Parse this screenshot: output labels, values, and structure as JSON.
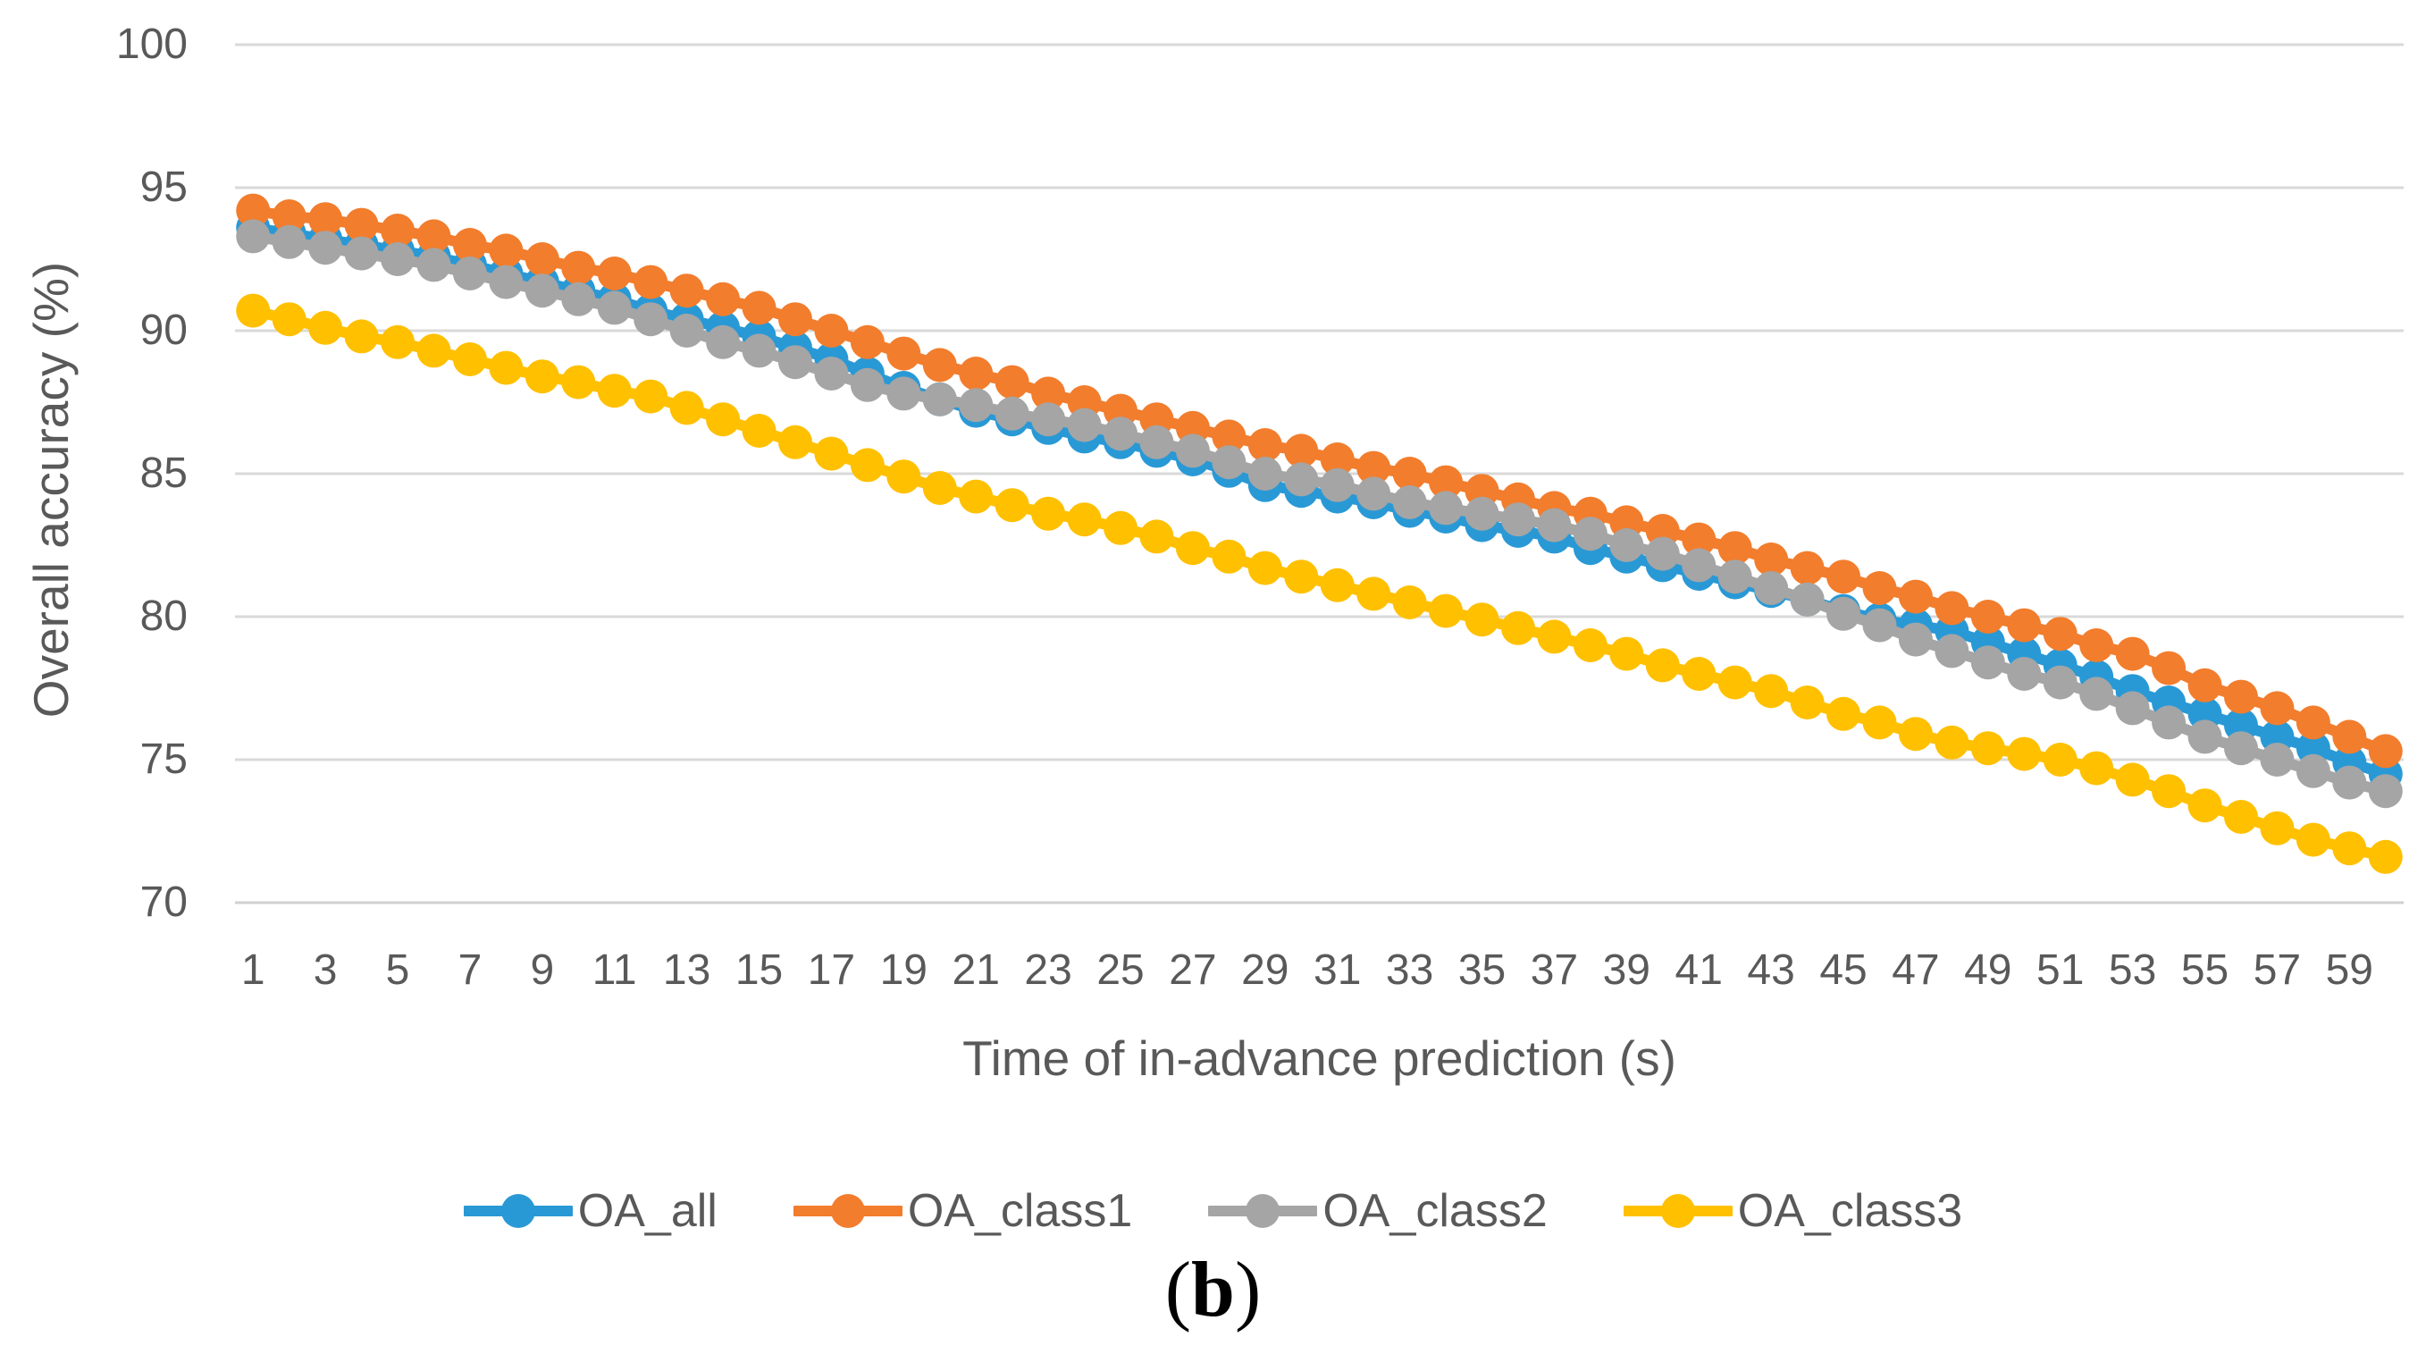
{
  "figure": {
    "caption_open": "(",
    "caption_letter": "b",
    "caption_close": ")"
  },
  "chart_data": {
    "type": "line",
    "title": "",
    "xlabel": "Time of in-advance prediction (s)",
    "ylabel": "Overall accuracy (%)",
    "ylim": [
      70,
      100
    ],
    "y_ticks": [
      70,
      75,
      80,
      85,
      90,
      95,
      100
    ],
    "y_tick_labels": [
      "70",
      "75",
      "80",
      "85",
      "90",
      "95",
      "100"
    ],
    "x_tick_labels": [
      "1",
      "3",
      "5",
      "7",
      "9",
      "11",
      "13",
      "15",
      "17",
      "19",
      "21",
      "23",
      "25",
      "27",
      "29",
      "31",
      "33",
      "35",
      "37",
      "39",
      "41",
      "43",
      "45",
      "47",
      "49",
      "51",
      "53",
      "55",
      "57",
      "59"
    ],
    "x_categories_count": 60,
    "grid": "horizontal",
    "legend_position": "bottom",
    "marker": "circle",
    "colors": {
      "gridline": "#D9D9D9",
      "axis_line": "#D0D0D0",
      "tick_text": "#595959",
      "axis_title_text": "#595959",
      "legend_text": "#595959"
    },
    "x": [
      1,
      2,
      3,
      4,
      5,
      6,
      7,
      8,
      9,
      10,
      11,
      12,
      13,
      14,
      15,
      16,
      17,
      18,
      19,
      20,
      21,
      22,
      23,
      24,
      25,
      26,
      27,
      28,
      29,
      30,
      31,
      32,
      33,
      34,
      35,
      36,
      37,
      38,
      39,
      40,
      41,
      42,
      43,
      44,
      45,
      46,
      47,
      48,
      49,
      50,
      51,
      52,
      53,
      54,
      55,
      56,
      57,
      58,
      59,
      60
    ],
    "series": [
      {
        "name": "OA_all",
        "color": "#2999D6",
        "values": [
          93.6,
          93.4,
          93.2,
          93.0,
          92.8,
          92.6,
          92.3,
          92.0,
          91.7,
          91.4,
          91.1,
          90.7,
          90.4,
          90.1,
          89.8,
          89.4,
          89.0,
          88.5,
          88.0,
          87.6,
          87.2,
          86.9,
          86.6,
          86.3,
          86.1,
          85.8,
          85.5,
          85.1,
          84.6,
          84.4,
          84.2,
          84.0,
          83.7,
          83.5,
          83.2,
          83.0,
          82.8,
          82.4,
          82.1,
          81.8,
          81.5,
          81.2,
          80.9,
          80.6,
          80.2,
          79.9,
          79.7,
          79.5,
          79.1,
          78.7,
          78.3,
          77.9,
          77.4,
          77.0,
          76.6,
          76.2,
          75.8,
          75.4,
          74.9,
          74.5
        ]
      },
      {
        "name": "OA_class1",
        "color": "#F27D2D",
        "values": [
          94.2,
          94.0,
          93.9,
          93.7,
          93.5,
          93.3,
          93.0,
          92.8,
          92.5,
          92.2,
          92.0,
          91.7,
          91.4,
          91.1,
          90.8,
          90.4,
          90.0,
          89.6,
          89.2,
          88.8,
          88.5,
          88.2,
          87.8,
          87.5,
          87.2,
          86.9,
          86.6,
          86.3,
          86.0,
          85.8,
          85.5,
          85.2,
          85.0,
          84.7,
          84.4,
          84.1,
          83.8,
          83.6,
          83.3,
          83.0,
          82.7,
          82.4,
          82.0,
          81.7,
          81.4,
          81.0,
          80.7,
          80.3,
          80.0,
          79.7,
          79.4,
          79.0,
          78.7,
          78.2,
          77.6,
          77.2,
          76.8,
          76.3,
          75.8,
          75.3
        ]
      },
      {
        "name": "OA_class2",
        "color": "#A5A5A5",
        "values": [
          93.3,
          93.1,
          92.9,
          92.7,
          92.5,
          92.3,
          92.0,
          91.7,
          91.4,
          91.1,
          90.8,
          90.4,
          90.0,
          89.6,
          89.3,
          88.9,
          88.5,
          88.1,
          87.8,
          87.6,
          87.4,
          87.1,
          86.9,
          86.7,
          86.4,
          86.1,
          85.8,
          85.4,
          85.0,
          84.8,
          84.6,
          84.3,
          84.0,
          83.8,
          83.6,
          83.4,
          83.2,
          82.9,
          82.5,
          82.2,
          81.8,
          81.4,
          81.0,
          80.6,
          80.1,
          79.7,
          79.2,
          78.8,
          78.4,
          78.0,
          77.7,
          77.3,
          76.8,
          76.3,
          75.8,
          75.4,
          75.0,
          74.6,
          74.2,
          73.9
        ]
      },
      {
        "name": "OA_class3",
        "color": "#FFC000",
        "values": [
          90.7,
          90.4,
          90.1,
          89.8,
          89.6,
          89.3,
          89.0,
          88.7,
          88.4,
          88.2,
          87.9,
          87.7,
          87.3,
          86.9,
          86.5,
          86.1,
          85.7,
          85.3,
          84.9,
          84.5,
          84.2,
          83.9,
          83.6,
          83.4,
          83.1,
          82.8,
          82.4,
          82.1,
          81.7,
          81.4,
          81.1,
          80.8,
          80.5,
          80.2,
          79.9,
          79.6,
          79.3,
          79.0,
          78.7,
          78.3,
          78.0,
          77.7,
          77.4,
          77.0,
          76.6,
          76.3,
          75.9,
          75.6,
          75.4,
          75.2,
          75.0,
          74.7,
          74.3,
          73.9,
          73.4,
          73.0,
          72.6,
          72.2,
          71.9,
          71.6
        ]
      }
    ]
  }
}
